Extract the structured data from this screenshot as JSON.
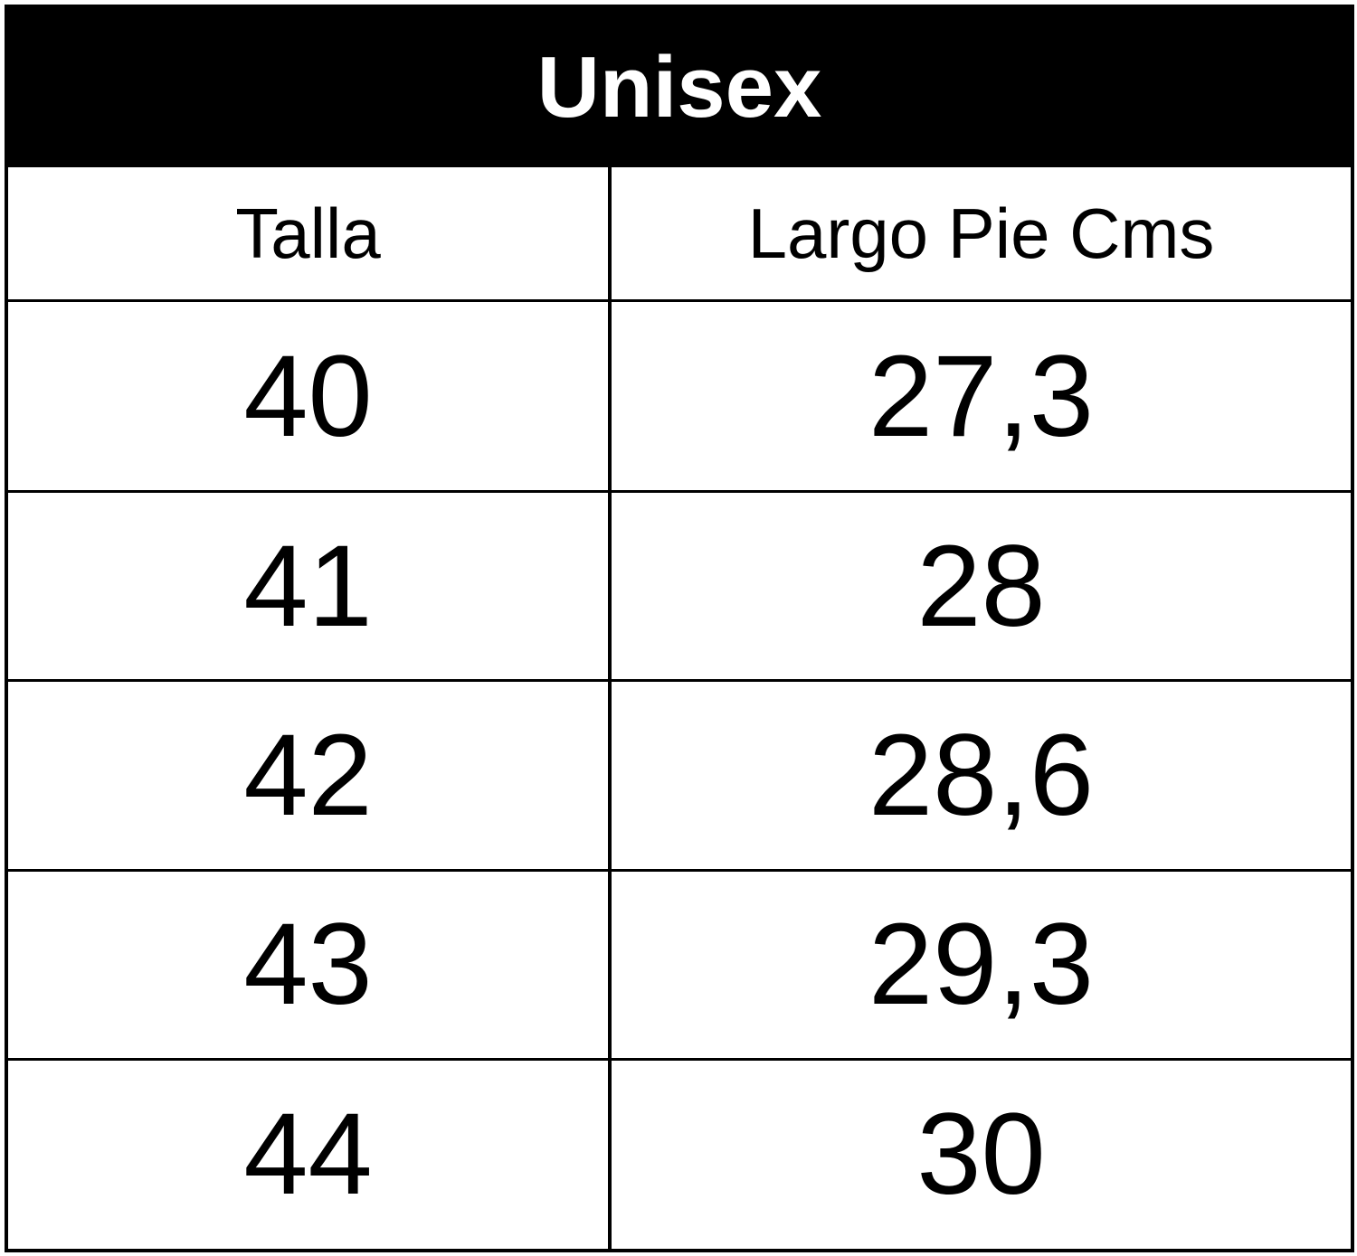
{
  "table": {
    "title": "Unisex",
    "columns": [
      "Talla",
      "Largo Pie Cms"
    ],
    "rows": [
      [
        "40",
        "27,3"
      ],
      [
        "41",
        "28"
      ],
      [
        "42",
        "28,6"
      ],
      [
        "43",
        "29,3"
      ],
      [
        "44",
        "30"
      ]
    ]
  }
}
